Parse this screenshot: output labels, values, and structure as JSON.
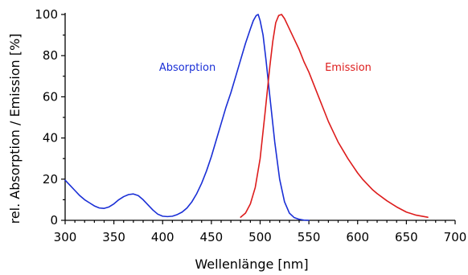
{
  "chart_data": {
    "type": "line",
    "title": "",
    "xlabel": "Wellenlänge [nm]",
    "ylabel": "rel. Absorption / Emission [%]",
    "xlim": [
      300,
      700
    ],
    "ylim": [
      0,
      100
    ],
    "xticks": [
      300,
      350,
      400,
      450,
      500,
      550,
      600,
      650,
      700
    ],
    "yticks": [
      0,
      20,
      40,
      60,
      80,
      100
    ],
    "grid": false,
    "series": [
      {
        "name": "Absorption",
        "color": "#1a2fd6",
        "x": [
          300,
          305,
          310,
          315,
          320,
          325,
          330,
          335,
          340,
          345,
          350,
          355,
          360,
          365,
          370,
          375,
          380,
          385,
          390,
          395,
          400,
          405,
          410,
          415,
          420,
          425,
          430,
          435,
          440,
          445,
          450,
          455,
          460,
          465,
          470,
          475,
          480,
          485,
          490,
          493,
          496,
          498,
          500,
          503,
          506,
          510,
          515,
          520,
          525,
          530,
          535,
          540,
          545,
          550
        ],
        "y": [
          19.5,
          17,
          14.5,
          12,
          10,
          8.5,
          7,
          6,
          5.8,
          6.5,
          8,
          10,
          11.5,
          12.5,
          12.8,
          12,
          10,
          7.5,
          5,
          3,
          2,
          1.8,
          2,
          2.8,
          4,
          6,
          9,
          13,
          18,
          24,
          31,
          39,
          47,
          55,
          62,
          70,
          78,
          86,
          93,
          97,
          99.5,
          100,
          97,
          90,
          78,
          60,
          38,
          20,
          9,
          3.5,
          1.3,
          0.5,
          0.1,
          0
        ]
      },
      {
        "name": "Emission",
        "color": "#dd1c1c",
        "x": [
          480,
          485,
          490,
          495,
          500,
          505,
          510,
          513,
          516,
          519,
          522,
          525,
          528,
          532,
          536,
          540,
          545,
          550,
          555,
          560,
          565,
          570,
          575,
          580,
          585,
          590,
          595,
          600,
          605,
          610,
          615,
          620,
          630,
          640,
          650,
          660,
          672
        ],
        "y": [
          1.5,
          3.5,
          8,
          16,
          30,
          52,
          75,
          87,
          96,
          99.5,
          100,
          98,
          95,
          91,
          87,
          83,
          77,
          72,
          66,
          60,
          54,
          48,
          43,
          38,
          34,
          30,
          26.5,
          23,
          20,
          17.5,
          15,
          13,
          9.5,
          6.5,
          4,
          2.5,
          1.5
        ]
      }
    ]
  }
}
